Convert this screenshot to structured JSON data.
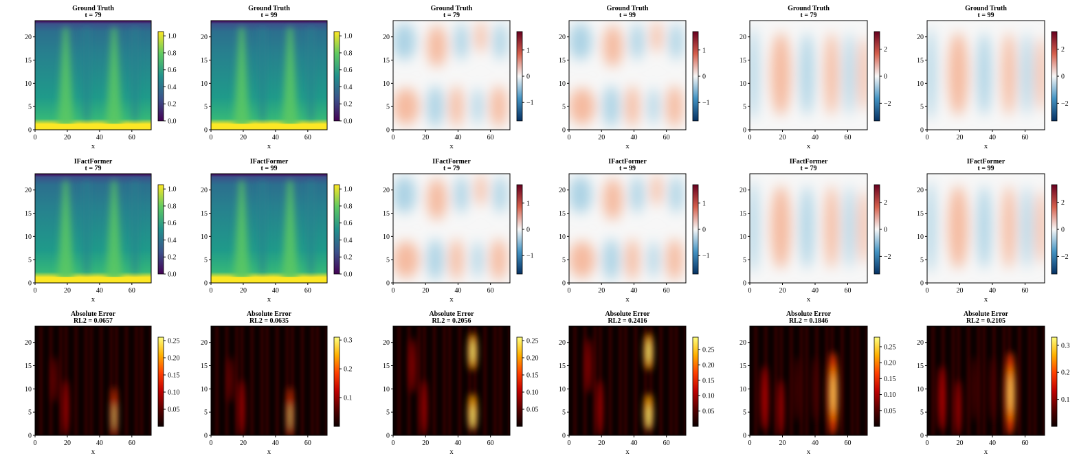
{
  "figure": {
    "columns": [
      {
        "cmap": "viridis",
        "t": "t = 79"
      },
      {
        "cmap": "viridis",
        "t": "t = 99"
      },
      {
        "cmap": "rdbu",
        "t": "t = 79"
      },
      {
        "cmap": "rdbu",
        "t": "t = 99"
      },
      {
        "cmap": "rdbu",
        "t": "t = 79"
      },
      {
        "cmap": "rdbu",
        "t": "t = 99"
      }
    ],
    "colors": {
      "viridis": [
        "#440154",
        "#3b528b",
        "#21918c",
        "#5ec962",
        "#fde725"
      ],
      "rdbu": [
        "#053061",
        "#4393c3",
        "#f7f7f7",
        "#d6604d",
        "#67001f"
      ],
      "hot": [
        "#0b0000",
        "#5a0000",
        "#c00000",
        "#ff4000",
        "#ffb000",
        "#ffff80"
      ]
    }
  },
  "chart_data": [
    {
      "type": "heatmap",
      "row": 0,
      "col": 0,
      "title": "Ground Truth",
      "subtitle": "t = 79",
      "xlabel": "x",
      "ylabel": "",
      "xlim": [
        0,
        72
      ],
      "ylim": [
        0,
        23.5
      ],
      "xticks": [
        "0",
        "20",
        "40",
        "60"
      ],
      "yticks": [
        "0",
        "5",
        "10",
        "15",
        "20"
      ],
      "colorbar": {
        "range": [
          0.0,
          1.05
        ],
        "ticks": [
          "0.0",
          "0.2",
          "0.4",
          "0.6",
          "0.8",
          "1.0"
        ],
        "cmap": "viridis"
      }
    },
    {
      "type": "heatmap",
      "row": 0,
      "col": 1,
      "title": "Ground Truth",
      "subtitle": "t = 99",
      "xlabel": "x",
      "ylabel": "",
      "xlim": [
        0,
        72
      ],
      "ylim": [
        0,
        23.5
      ],
      "xticks": [
        "0",
        "20",
        "40",
        "60"
      ],
      "yticks": [
        "0",
        "5",
        "10",
        "15",
        "20"
      ],
      "colorbar": {
        "range": [
          0.0,
          1.05
        ],
        "ticks": [
          "0.0",
          "0.2",
          "0.4",
          "0.6",
          "0.8",
          "1.0"
        ],
        "cmap": "viridis"
      }
    },
    {
      "type": "heatmap",
      "row": 0,
      "col": 2,
      "title": "Ground Truth",
      "subtitle": "t = 79",
      "xlabel": "x",
      "ylabel": "",
      "xlim": [
        0,
        72
      ],
      "ylim": [
        0,
        23.5
      ],
      "xticks": [
        "0",
        "20",
        "40",
        "60"
      ],
      "yticks": [
        "0",
        "5",
        "10",
        "15",
        "20"
      ],
      "colorbar": {
        "range": [
          -1.7,
          1.7
        ],
        "ticks": [
          "−1",
          "0",
          "1"
        ],
        "cmap": "rdbu"
      }
    },
    {
      "type": "heatmap",
      "row": 0,
      "col": 3,
      "title": "Ground Truth",
      "subtitle": "t = 99",
      "xlabel": "x",
      "ylabel": "",
      "xlim": [
        0,
        72
      ],
      "ylim": [
        0,
        23.5
      ],
      "xticks": [
        "0",
        "20",
        "40",
        "60"
      ],
      "yticks": [
        "0",
        "5",
        "10",
        "15",
        "20"
      ],
      "colorbar": {
        "range": [
          -1.7,
          1.7
        ],
        "ticks": [
          "−1",
          "0",
          "1"
        ],
        "cmap": "rdbu"
      }
    },
    {
      "type": "heatmap",
      "row": 0,
      "col": 4,
      "title": "Ground Truth",
      "subtitle": "t = 79",
      "xlabel": "x",
      "ylabel": "",
      "xlim": [
        0,
        72
      ],
      "ylim": [
        0,
        23.5
      ],
      "xticks": [
        "0",
        "20",
        "40",
        "60"
      ],
      "yticks": [
        "0",
        "5",
        "10",
        "15",
        "20"
      ],
      "colorbar": {
        "range": [
          -3.3,
          3.3
        ],
        "ticks": [
          "−2",
          "0",
          "2"
        ],
        "cmap": "rdbu"
      }
    },
    {
      "type": "heatmap",
      "row": 0,
      "col": 5,
      "title": "Ground Truth",
      "subtitle": "t = 99",
      "xlabel": "x",
      "ylabel": "",
      "xlim": [
        0,
        72
      ],
      "ylim": [
        0,
        23.5
      ],
      "xticks": [
        "0",
        "20",
        "40",
        "60"
      ],
      "yticks": [
        "0",
        "5",
        "10",
        "15",
        "20"
      ],
      "colorbar": {
        "range": [
          -3.3,
          3.3
        ],
        "ticks": [
          "−2",
          "0",
          "2"
        ],
        "cmap": "rdbu"
      }
    },
    {
      "type": "heatmap",
      "row": 1,
      "col": 0,
      "title": "IFactFormer",
      "subtitle": "t = 79",
      "xlabel": "x",
      "ylabel": "",
      "xlim": [
        0,
        72
      ],
      "ylim": [
        0,
        23.5
      ],
      "xticks": [
        "0",
        "20",
        "40",
        "60"
      ],
      "yticks": [
        "0",
        "5",
        "10",
        "15",
        "20"
      ],
      "colorbar": {
        "range": [
          0.0,
          1.05
        ],
        "ticks": [
          "0.0",
          "0.2",
          "0.4",
          "0.6",
          "0.8",
          "1.0"
        ],
        "cmap": "viridis"
      }
    },
    {
      "type": "heatmap",
      "row": 1,
      "col": 1,
      "title": "IFactFormer",
      "subtitle": "t = 99",
      "xlabel": "x",
      "ylabel": "",
      "xlim": [
        0,
        72
      ],
      "ylim": [
        0,
        23.5
      ],
      "xticks": [
        "0",
        "20",
        "40",
        "60"
      ],
      "yticks": [
        "0",
        "5",
        "10",
        "15",
        "20"
      ],
      "colorbar": {
        "range": [
          0.0,
          1.05
        ],
        "ticks": [
          "0.0",
          "0.2",
          "0.4",
          "0.6",
          "0.8",
          "1.0"
        ],
        "cmap": "viridis"
      }
    },
    {
      "type": "heatmap",
      "row": 1,
      "col": 2,
      "title": "IFactFormer",
      "subtitle": "t = 79",
      "xlabel": "x",
      "ylabel": "",
      "xlim": [
        0,
        72
      ],
      "ylim": [
        0,
        23.5
      ],
      "xticks": [
        "0",
        "20",
        "40",
        "60"
      ],
      "yticks": [
        "0",
        "5",
        "10",
        "15",
        "20"
      ],
      "colorbar": {
        "range": [
          -1.7,
          1.7
        ],
        "ticks": [
          "−1",
          "0",
          "1"
        ],
        "cmap": "rdbu"
      }
    },
    {
      "type": "heatmap",
      "row": 1,
      "col": 3,
      "title": "IFactFormer",
      "subtitle": "t = 99",
      "xlabel": "x",
      "ylabel": "",
      "xlim": [
        0,
        72
      ],
      "ylim": [
        0,
        23.5
      ],
      "xticks": [
        "0",
        "20",
        "40",
        "60"
      ],
      "yticks": [
        "0",
        "5",
        "10",
        "15",
        "20"
      ],
      "colorbar": {
        "range": [
          -1.7,
          1.7
        ],
        "ticks": [
          "−1",
          "0",
          "1"
        ],
        "cmap": "rdbu"
      }
    },
    {
      "type": "heatmap",
      "row": 1,
      "col": 4,
      "title": "IFactFormer",
      "subtitle": "t = 79",
      "xlabel": "x",
      "ylabel": "",
      "xlim": [
        0,
        72
      ],
      "ylim": [
        0,
        23.5
      ],
      "xticks": [
        "0",
        "20",
        "40",
        "60"
      ],
      "yticks": [
        "0",
        "5",
        "10",
        "15",
        "20"
      ],
      "colorbar": {
        "range": [
          -3.3,
          3.3
        ],
        "ticks": [
          "−2",
          "0",
          "2"
        ],
        "cmap": "rdbu"
      }
    },
    {
      "type": "heatmap",
      "row": 1,
      "col": 5,
      "title": "IFactFormer",
      "subtitle": "t = 99",
      "xlabel": "x",
      "ylabel": "",
      "xlim": [
        0,
        72
      ],
      "ylim": [
        0,
        23.5
      ],
      "xticks": [
        "0",
        "20",
        "40",
        "60"
      ],
      "yticks": [
        "0",
        "5",
        "10",
        "15",
        "20"
      ],
      "colorbar": {
        "range": [
          -3.3,
          3.3
        ],
        "ticks": [
          "−2",
          "0",
          "2"
        ],
        "cmap": "rdbu"
      }
    },
    {
      "type": "heatmap",
      "row": 2,
      "col": 0,
      "title": "Absolute Error",
      "subtitle": "RL2 = 0.0657",
      "xlabel": "x",
      "ylabel": "",
      "xlim": [
        0,
        72
      ],
      "ylim": [
        0,
        23.5
      ],
      "xticks": [
        "0",
        "20",
        "40",
        "60"
      ],
      "yticks": [
        "0",
        "5",
        "10",
        "15",
        "20"
      ],
      "colorbar": {
        "range": [
          0.0,
          0.26
        ],
        "ticks": [
          "0.05",
          "0.10",
          "0.15",
          "0.20",
          "0.25"
        ],
        "cmap": "hot"
      }
    },
    {
      "type": "heatmap",
      "row": 2,
      "col": 1,
      "title": "Absolute Error",
      "subtitle": "RL2 = 0.0635",
      "xlabel": "x",
      "ylabel": "",
      "xlim": [
        0,
        72
      ],
      "ylim": [
        0,
        23.5
      ],
      "xticks": [
        "0",
        "20",
        "40",
        "60"
      ],
      "yticks": [
        "0",
        "5",
        "10",
        "15",
        "20"
      ],
      "colorbar": {
        "range": [
          0.0,
          0.31
        ],
        "ticks": [
          "0.1",
          "0.2",
          "0.3"
        ],
        "cmap": "hot"
      }
    },
    {
      "type": "heatmap",
      "row": 2,
      "col": 2,
      "title": "Absolute Error",
      "subtitle": "RL2 = 0.2056",
      "xlabel": "x",
      "ylabel": "",
      "xlim": [
        0,
        72
      ],
      "ylim": [
        0,
        23.5
      ],
      "xticks": [
        "0",
        "20",
        "40",
        "60"
      ],
      "yticks": [
        "0",
        "5",
        "10",
        "15",
        "20"
      ],
      "colorbar": {
        "range": [
          0.0,
          0.26
        ],
        "ticks": [
          "0.05",
          "0.10",
          "0.15",
          "0.20",
          "0.25"
        ],
        "cmap": "hot"
      }
    },
    {
      "type": "heatmap",
      "row": 2,
      "col": 3,
      "title": "Absolute Error",
      "subtitle": "RL2 = 0.2416",
      "xlabel": "x",
      "ylabel": "",
      "xlim": [
        0,
        72
      ],
      "ylim": [
        0,
        23.5
      ],
      "xticks": [
        "0",
        "20",
        "40",
        "60"
      ],
      "yticks": [
        "0",
        "5",
        "10",
        "15",
        "20"
      ],
      "colorbar": {
        "range": [
          0.0,
          0.29
        ],
        "ticks": [
          "0.05",
          "0.10",
          "0.15",
          "0.20",
          "0.25"
        ],
        "cmap": "hot"
      }
    },
    {
      "type": "heatmap",
      "row": 2,
      "col": 4,
      "title": "Absolute Error",
      "subtitle": "RL2 = 0.1846",
      "xlabel": "x",
      "ylabel": "",
      "xlim": [
        0,
        72
      ],
      "ylim": [
        0,
        23.5
      ],
      "xticks": [
        "0",
        "20",
        "40",
        "60"
      ],
      "yticks": [
        "0",
        "5",
        "10",
        "15",
        "20"
      ],
      "colorbar": {
        "range": [
          0.0,
          0.28
        ],
        "ticks": [
          "0.05",
          "0.10",
          "0.15",
          "0.20",
          "0.25"
        ],
        "cmap": "hot"
      }
    },
    {
      "type": "heatmap",
      "row": 2,
      "col": 5,
      "title": "Absolute Error",
      "subtitle": "RL2 = 0.2105",
      "xlabel": "x",
      "ylabel": "",
      "xlim": [
        0,
        72
      ],
      "ylim": [
        0,
        23.5
      ],
      "xticks": [
        "0",
        "20",
        "40",
        "60"
      ],
      "yticks": [
        "0",
        "5",
        "10",
        "15",
        "20"
      ],
      "colorbar": {
        "range": [
          0.0,
          0.33
        ],
        "ticks": [
          "0.1",
          "0.2",
          "0.3"
        ],
        "cmap": "hot"
      }
    }
  ]
}
